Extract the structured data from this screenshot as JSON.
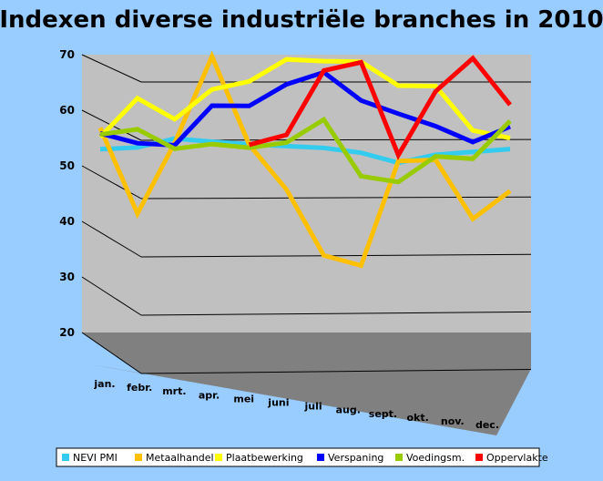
{
  "chart_data": {
    "type": "line",
    "title": "Indexen diverse industriële branches in 2010",
    "xlabel": "",
    "ylabel": "",
    "ylim": [
      20,
      70
    ],
    "yticks": [
      20,
      30,
      40,
      50,
      60,
      70
    ],
    "categories": [
      "jan.",
      "febr.",
      "mrt.",
      "apr.",
      "mei",
      "juni",
      "juli",
      "aug.",
      "sept.",
      "okt.",
      "nov.",
      "dec."
    ],
    "grid": true,
    "legend_position": "bottom",
    "series": [
      {
        "name": "NEVI PMI",
        "color": "#33ccee",
        "values": [
          56.0,
          56.3,
          57.8,
          57.3,
          56.9,
          56.6,
          56.3,
          55.5,
          53.8,
          55.2,
          55.7,
          56.2
        ]
      },
      {
        "name": "Metaalhandel",
        "color": "#ffc000",
        "values": [
          59.5,
          45.4,
          57.1,
          71.5,
          56.8,
          49.3,
          38.1,
          36.3,
          54.1,
          54.3,
          44.1,
          48.9
        ]
      },
      {
        "name": "Plaatbewerking",
        "color": "#ffff00",
        "values": [
          58.0,
          64.4,
          61.0,
          66.0,
          67.4,
          71.2,
          71.0,
          71.0,
          67.0,
          67.0,
          59.4,
          58.1
        ]
      },
      {
        "name": "Verspaning",
        "color": "#0000ff",
        "values": [
          58.6,
          57.0,
          56.7,
          63.3,
          63.3,
          67.0,
          69.1,
          64.4,
          62.2,
          60.1,
          57.4,
          60.1
        ]
      },
      {
        "name": "Voedingsm.",
        "color": "#99cc00",
        "values": [
          58.4,
          59.3,
          56.1,
          56.9,
          56.3,
          57.2,
          61.1,
          51.5,
          50.5,
          54.9,
          54.5,
          61.1
        ]
      },
      {
        "name": "Oppervlakte",
        "color": "#ff0000",
        "values": [
          null,
          null,
          null,
          null,
          56.8,
          58.5,
          69.4,
          70.9,
          55.1,
          66.1,
          71.9,
          63.9
        ]
      }
    ]
  }
}
